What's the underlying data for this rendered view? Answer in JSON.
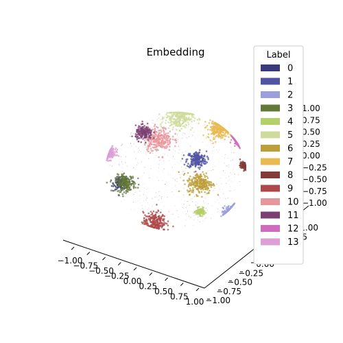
{
  "chart_data": {
    "type": "scatter",
    "projection": "3d",
    "title": "Embedding",
    "legend": {
      "title": "Label",
      "placement": "right",
      "entries": [
        {
          "label": "0",
          "color": "#393b79"
        },
        {
          "label": "1",
          "color": "#5254a3"
        },
        {
          "label": "2",
          "color": "#9c9ede"
        },
        {
          "label": "3",
          "color": "#637939"
        },
        {
          "label": "4",
          "color": "#b5cf6b"
        },
        {
          "label": "5",
          "color": "#cedb9c"
        },
        {
          "label": "6",
          "color": "#bd9e39"
        },
        {
          "label": "7",
          "color": "#e7ba52"
        },
        {
          "label": "8",
          "color": "#843c39"
        },
        {
          "label": "9",
          "color": "#ad494a"
        },
        {
          "label": "10",
          "color": "#e7969c"
        },
        {
          "label": "11",
          "color": "#7b4173"
        },
        {
          "label": "12",
          "color": "#ce6dbd"
        },
        {
          "label": "13",
          "color": "#de9ed6"
        }
      ]
    },
    "axes": {
      "x": {
        "range": [
          -1.0,
          1.0
        ],
        "ticks": [
          "−1.00",
          "−0.75",
          "−0.50",
          "−0.25",
          "0.00",
          "0.25",
          "0.50",
          "0.75",
          "1.00"
        ]
      },
      "y": {
        "range": [
          -1.0,
          1.0
        ],
        "ticks": [
          "−1.00",
          "−0.75",
          "−0.50",
          "−0.25",
          "0.00",
          "0.25",
          "0.50",
          "0.75",
          "1.00"
        ]
      },
      "z": {
        "range": [
          -1.0,
          1.0
        ],
        "ticks": [
          "1.00",
          "0.75",
          "0.50",
          "0.25",
          "0.00",
          "−0.25",
          "−0.50",
          "−0.75",
          "−1.00"
        ]
      }
    },
    "grid": false,
    "clusters": [
      {
        "label": "0",
        "x": -0.78,
        "y": -0.2,
        "spread": 0.05
      },
      {
        "label": "1",
        "x": 0.3,
        "y": 0.2,
        "spread": 0.07
      },
      {
        "label": "2",
        "x": 0.8,
        "y": -0.7,
        "spread": 0.06
      },
      {
        "label": "3",
        "x": -0.72,
        "y": -0.2,
        "spread": 0.07
      },
      {
        "label": "4",
        "x": 0.35,
        "y": -0.68,
        "spread": 0.03
      },
      {
        "label": "5",
        "x": 0.05,
        "y": 0.92,
        "spread": 0.1
      },
      {
        "label": "6",
        "x": 0.35,
        "y": -0.2,
        "spread": 0.09
      },
      {
        "label": "7",
        "x": 0.62,
        "y": 0.72,
        "spread": 0.08
      },
      {
        "label": "8",
        "x": 0.98,
        "y": 0.1,
        "spread": 0.03
      },
      {
        "label": "9",
        "x": -0.3,
        "y": -0.85,
        "spread": 0.08
      },
      {
        "label": "10",
        "x": -0.25,
        "y": 0.55,
        "spread": 0.1
      },
      {
        "label": "11",
        "x": -0.45,
        "y": 0.65,
        "spread": 0.06
      },
      {
        "label": "12",
        "x": 0.92,
        "y": 0.55,
        "spread": 0.05
      },
      {
        "label": "13",
        "x": -0.95,
        "y": 0.3,
        "spread": 0.05
      }
    ]
  }
}
